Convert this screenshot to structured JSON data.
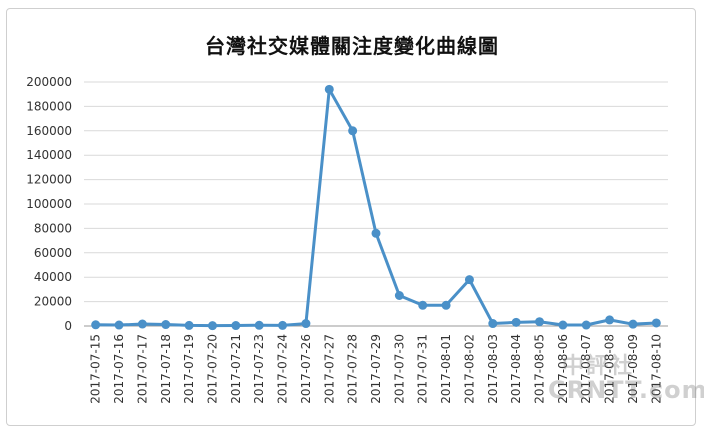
{
  "chart_data": {
    "type": "line",
    "title": "台灣社交媒體關注度變化曲線圖",
    "categories": [
      "2017-07-15",
      "2017-07-16",
      "2017-07-17",
      "2017-07-18",
      "2017-07-19",
      "2017-07-20",
      "2017-07-21",
      "2017-07-23",
      "2017-07-24",
      "2017-07-26",
      "2017-07-27",
      "2017-07-28",
      "2017-07-29",
      "2017-07-30",
      "2017-07-31",
      "2017-08-01",
      "2017-08-02",
      "2017-08-03",
      "2017-08-04",
      "2017-08-05",
      "2017-08-06",
      "2017-08-07",
      "2017-08-08",
      "2017-08-09",
      "2017-08-10"
    ],
    "values": [
      1000,
      800,
      1600,
      1200,
      500,
      300,
      400,
      600,
      500,
      2000,
      194000,
      160000,
      76000,
      25000,
      17000,
      17000,
      38000,
      2000,
      3000,
      3500,
      800,
      800,
      5000,
      1500,
      2500
    ],
    "ylim": [
      0,
      200000
    ],
    "yticks": [
      0,
      20000,
      40000,
      60000,
      80000,
      100000,
      120000,
      140000,
      160000,
      180000,
      200000
    ],
    "grid": true,
    "series_color": "#4a90c8",
    "legend": "none"
  },
  "watermark": {
    "top": "中評社",
    "bottom": "CRNTT.com"
  }
}
